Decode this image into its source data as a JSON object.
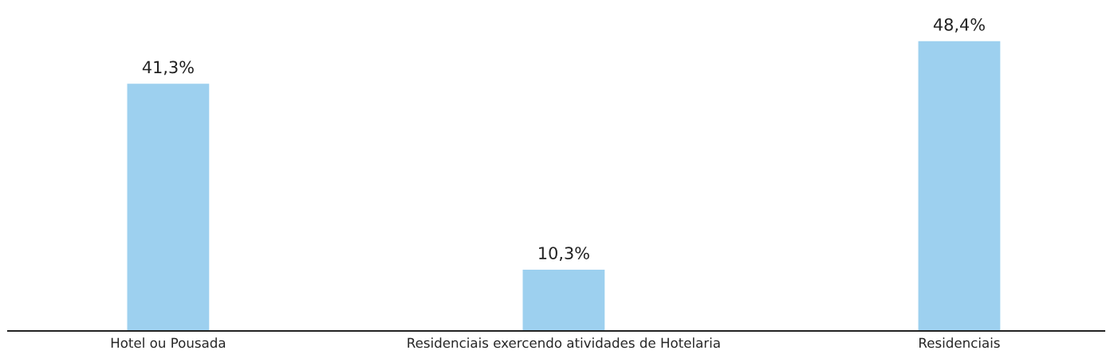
{
  "chart_data": {
    "type": "bar",
    "categories": [
      "Hotel ou Pousada",
      "Residenciais exercendo atividades de Hotelaria",
      "Residenciais"
    ],
    "values": [
      41.3,
      10.3,
      48.4
    ],
    "value_labels": [
      "41,3%",
      "10,3%",
      "48,4%"
    ],
    "color": "#9dd0ef"
  }
}
